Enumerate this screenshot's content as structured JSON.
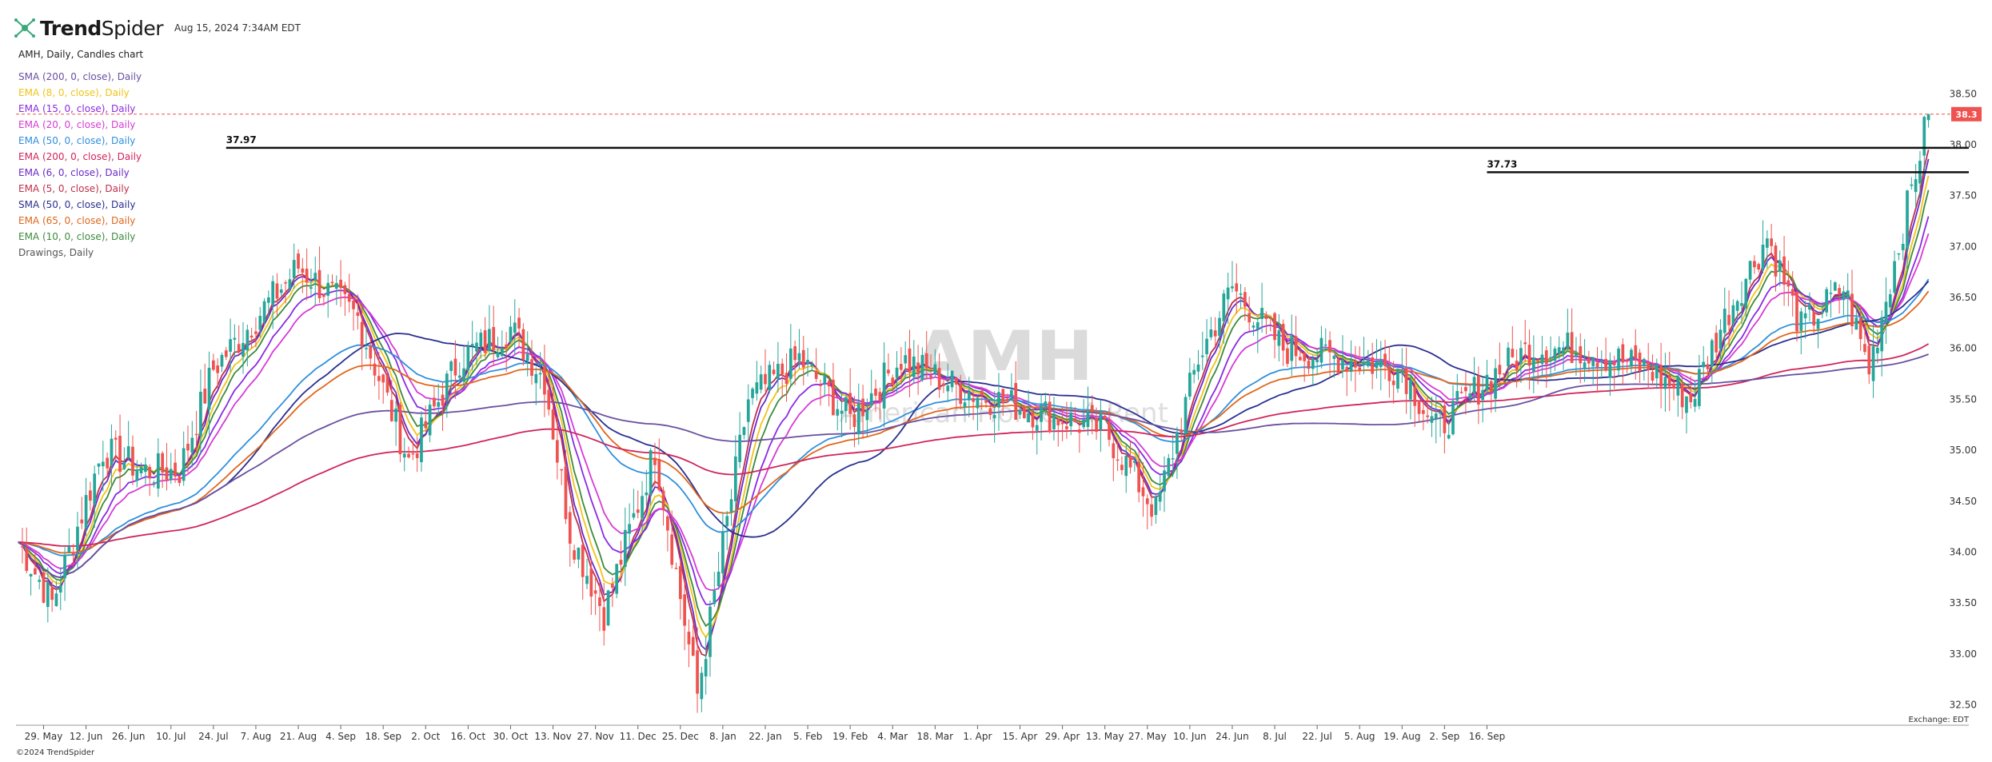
{
  "header": {
    "brand_bold": "Trend",
    "brand_thin": "Spider",
    "timestamp": "Aug 15, 2024 7:34AM EDT"
  },
  "subtitle": "AMH, Daily, Candles chart",
  "watermark": {
    "ticker": "AMH",
    "name": "American Homes 4 Rent"
  },
  "legend": [
    {
      "label": "SMA (200, 0, close), Daily",
      "color": "#6a4fa0"
    },
    {
      "label": "EMA (8, 0, close), Daily",
      "color": "#f2c318"
    },
    {
      "label": "EMA (15, 0, close), Daily",
      "color": "#8a2be2"
    },
    {
      "label": "EMA (20, 0, close), Daily",
      "color": "#d63bd6"
    },
    {
      "label": "EMA (50, 0, close), Daily",
      "color": "#2f8fdc"
    },
    {
      "label": "EMA (200, 0, close), Daily",
      "color": "#d1245a"
    },
    {
      "label": "EMA (6, 0, close), Daily",
      "color": "#6a2bc8"
    },
    {
      "label": "EMA (5, 0, close), Daily",
      "color": "#c0304a"
    },
    {
      "label": "SMA (50, 0, close), Daily",
      "color": "#2a2f8f"
    },
    {
      "label": "EMA (65, 0, close), Daily",
      "color": "#e0661a"
    },
    {
      "label": "EMA (10, 0, close), Daily",
      "color": "#3d8a3d"
    },
    {
      "label": "Drawings, Daily",
      "color": "#555555"
    }
  ],
  "copyright": "©2024 TrendSpider",
  "exchange_label": "Exchange: EDT",
  "colors": {
    "up": "#26a69a",
    "down": "#ef5350",
    "price_line": "#ef5350"
  },
  "chart_data": {
    "type": "candlestick",
    "title": "AMH, Daily, Candles chart",
    "ylim": [
      32.3,
      38.95
    ],
    "x_tick_labels": [
      "29. May",
      "12. Jun",
      "26. Jun",
      "10. Jul",
      "24. Jul",
      "7. Aug",
      "21. Aug",
      "4. Sep",
      "18. Sep",
      "2. Oct",
      "16. Oct",
      "30. Oct",
      "13. Nov",
      "27. Nov",
      "11. Dec",
      "25. Dec",
      "8. Jan",
      "22. Jan",
      "5. Feb",
      "19. Feb",
      "4. Mar",
      "18. Mar",
      "1. Apr",
      "15. Apr",
      "29. Apr",
      "13. May",
      "27. May",
      "10. Jun",
      "24. Jun",
      "8. Jul",
      "22. Jul",
      "5. Aug",
      "19. Aug",
      "2. Sep",
      "16. Sep"
    ],
    "y_tick_labels": [
      "38.50",
      "38.00",
      "37.50",
      "37.00",
      "36.50",
      "36.00",
      "35.50",
      "35.00",
      "34.50",
      "34.00",
      "33.50",
      "33.00",
      "32.50"
    ],
    "y_ticks": [
      38.5,
      38.0,
      37.5,
      37.0,
      36.5,
      36.0,
      35.5,
      35.0,
      34.5,
      34.0,
      33.5,
      33.0,
      32.5
    ],
    "last_price": 38.3,
    "last_price_label": "38.3",
    "horizontal_lines": [
      {
        "value": 37.97,
        "label": "37.97",
        "start_index": 49
      },
      {
        "value": 37.73,
        "label": "37.73",
        "start_index": 346
      }
    ],
    "price_path_anchors": [
      [
        0,
        34.1
      ],
      [
        8,
        33.5
      ],
      [
        20,
        35.0
      ],
      [
        30,
        34.8
      ],
      [
        38,
        34.8
      ],
      [
        46,
        35.8
      ],
      [
        58,
        36.4
      ],
      [
        66,
        36.8
      ],
      [
        80,
        36.3
      ],
      [
        92,
        34.9
      ],
      [
        104,
        35.9
      ],
      [
        116,
        36.2
      ],
      [
        124,
        35.7
      ],
      [
        130,
        34.2
      ],
      [
        138,
        33.4
      ],
      [
        150,
        35.0
      ],
      [
        160,
        32.6
      ],
      [
        172,
        35.5
      ],
      [
        184,
        35.9
      ],
      [
        196,
        35.3
      ],
      [
        208,
        35.9
      ],
      [
        222,
        35.6
      ],
      [
        238,
        35.4
      ],
      [
        256,
        35.2
      ],
      [
        268,
        34.4
      ],
      [
        278,
        35.9
      ],
      [
        286,
        36.6
      ],
      [
        298,
        36.0
      ],
      [
        312,
        35.9
      ],
      [
        326,
        35.8
      ],
      [
        334,
        35.2
      ],
      [
        346,
        35.7
      ],
      [
        356,
        36.0
      ],
      [
        368,
        36.0
      ],
      [
        384,
        35.8
      ],
      [
        394,
        35.5
      ],
      [
        402,
        36.3
      ],
      [
        412,
        37.1
      ],
      [
        420,
        36.2
      ],
      [
        430,
        36.6
      ],
      [
        436,
        35.8
      ],
      [
        444,
        37.2
      ],
      [
        450,
        38.3
      ]
    ],
    "moving_averages": [
      {
        "name": "EMA (5, 0, close), Daily",
        "color": "#c0304a"
      },
      {
        "name": "EMA (6, 0, close), Daily",
        "color": "#6a2bc8"
      },
      {
        "name": "EMA (8, 0, close), Daily",
        "color": "#f2c318"
      },
      {
        "name": "EMA (10, 0, close), Daily",
        "color": "#3d8a3d"
      },
      {
        "name": "EMA (15, 0, close), Daily",
        "color": "#8a2be2"
      },
      {
        "name": "EMA (20, 0, close), Daily",
        "color": "#d63bd6"
      },
      {
        "name": "EMA (50, 0, close), Daily",
        "color": "#2f8fdc"
      },
      {
        "name": "SMA (50, 0, close), Daily",
        "color": "#2a2f8f"
      },
      {
        "name": "EMA (65, 0, close), Daily",
        "color": "#e0661a"
      },
      {
        "name": "EMA (200, 0, close), Daily",
        "color": "#d1245a"
      },
      {
        "name": "SMA (200, 0, close), Daily",
        "color": "#6a4fa0"
      }
    ]
  }
}
